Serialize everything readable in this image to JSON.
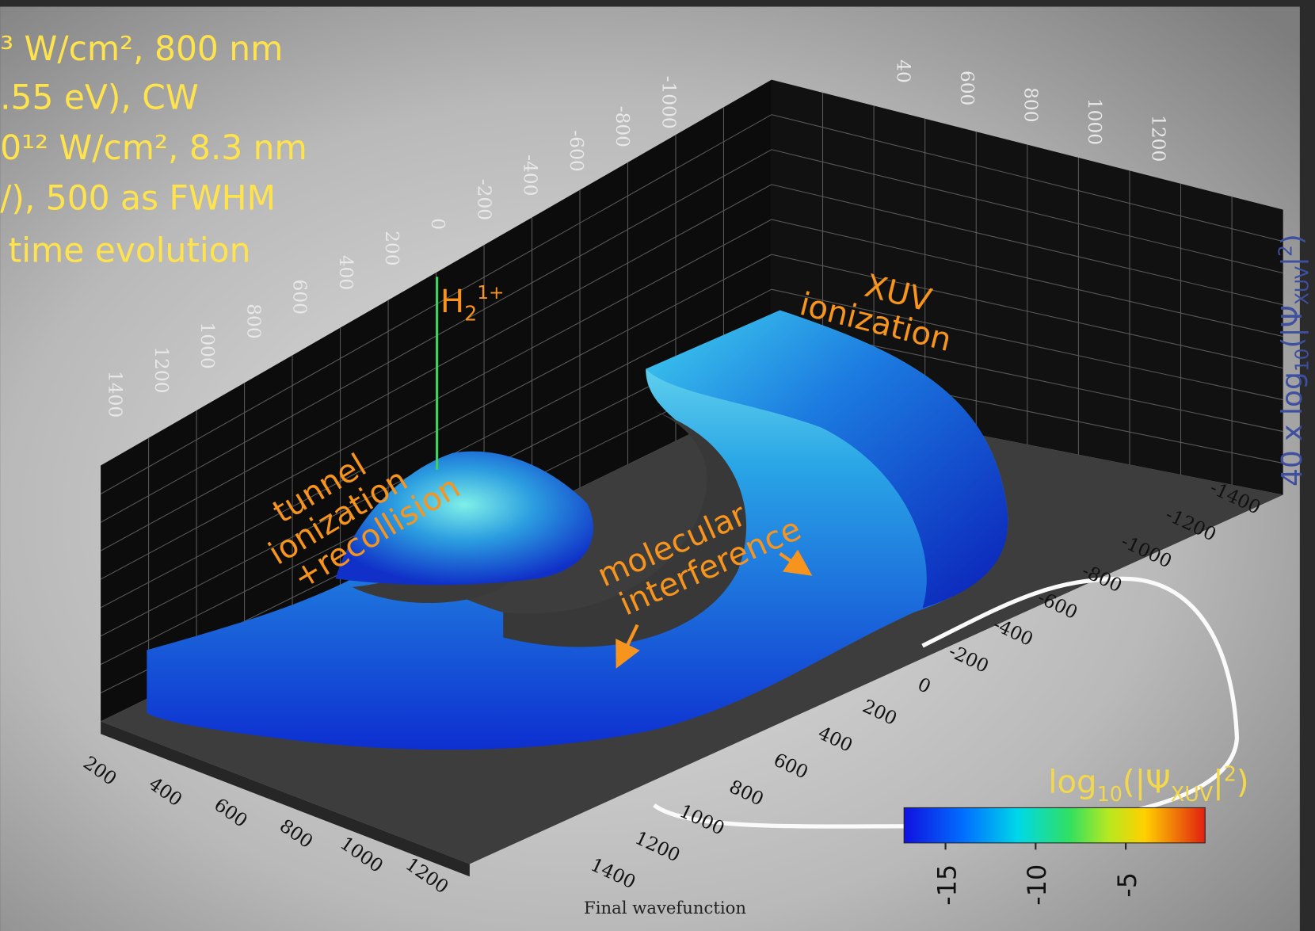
{
  "header": {
    "lines": [
      "³ W/cm², 800 nm",
      ".55 eV), CW",
      "0¹² W/cm², 8.3 nm",
      "/), 500 as FWHM",
      "time evolution"
    ]
  },
  "annotations": {
    "tunnel": [
      "tunnel",
      "ionization",
      "+recollision"
    ],
    "ion": {
      "base": "H",
      "sub": "2",
      "sup": "1+"
    },
    "xuv": [
      "XUV",
      "ionization"
    ],
    "interference": [
      "molecular",
      "interference"
    ]
  },
  "axes": {
    "back_top": [
      1400,
      1200,
      1000,
      800,
      600,
      400,
      200,
      0,
      -200,
      -400,
      -600,
      -800,
      -1000
    ],
    "right_top": [
      40,
      600,
      800,
      1000,
      1200
    ],
    "front_bottom": [
      200,
      400,
      600,
      800,
      1000,
      1200
    ],
    "front_right": [
      -1400,
      -1200,
      -1000,
      -800,
      -600,
      -400,
      -200,
      0,
      200,
      400,
      600,
      800,
      1000,
      1200,
      1400
    ],
    "z_label": {
      "a": "40 x log",
      "sub": "10",
      "b": "(|Ψ",
      "sub2": "XUV",
      "c": "|",
      "sup": "2",
      "d": ")"
    }
  },
  "colorbar": {
    "label": {
      "a": "log",
      "sub": "10",
      "b": "(|Ψ",
      "sub2": "XUV",
      "c": "|",
      "sup": "2",
      "d": ")"
    },
    "clim": [
      -17.3,
      -0.6
    ],
    "ticks": [
      -15,
      -10,
      -5
    ]
  },
  "caption": "Final wavefunction"
}
